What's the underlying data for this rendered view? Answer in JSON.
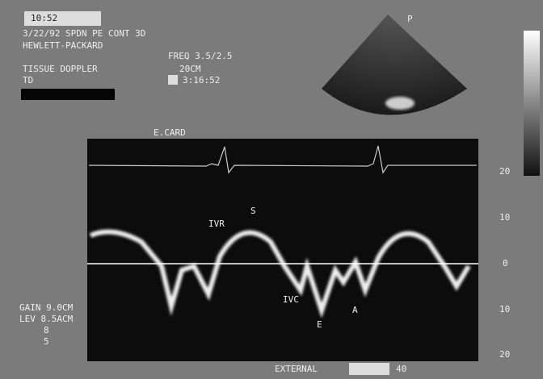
{
  "header": {
    "badge": "10:52",
    "line1": "3/22/92 SPDN PE CONT 3D",
    "line2": "HEWLETT-PACKARD",
    "freq": "FREQ 3.5/2.5",
    "mode": "TISSUE DOPPLER",
    "sub": "TD",
    "time": "3:16:52",
    "depth": "20CM"
  },
  "sector": {
    "label": "P"
  },
  "ecg": {
    "label": "E.CARD"
  },
  "waves": {
    "s": "S",
    "ivr_top": "IVR",
    "ivc": "IVC",
    "e": "E",
    "a": "A"
  },
  "scale": {
    "ticks": [
      "20",
      "10",
      "0",
      "10",
      "20"
    ]
  },
  "settings": {
    "gain": "GAIN 9.0CM",
    "level": "LEV 8.5ACM",
    "a": "8",
    "b": "5"
  },
  "footer": {
    "label": "EXTERNAL",
    "value": "40"
  }
}
